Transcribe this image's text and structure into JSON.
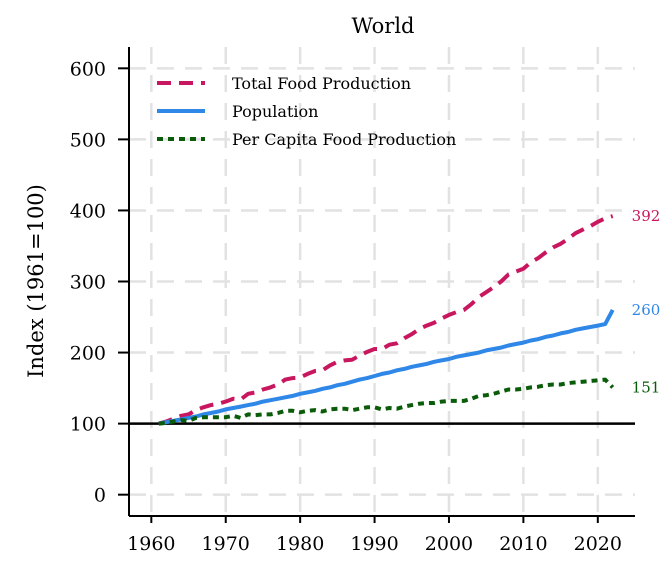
{
  "chart_data": {
    "type": "line",
    "title": "World",
    "xlabel": "",
    "ylabel": "Index (1961=100)",
    "xlim": [
      1957,
      2025
    ],
    "ylim": [
      -30,
      630
    ],
    "x_ticks": [
      1960,
      1970,
      1980,
      1990,
      2000,
      2010,
      2020
    ],
    "y_ticks": [
      0,
      100,
      200,
      300,
      400,
      500,
      600
    ],
    "x_tick_labels": [
      "1960",
      "1970",
      "1980",
      "1990",
      "2000",
      "2010",
      "2020"
    ],
    "y_tick_labels": [
      "0",
      "100",
      "200",
      "300",
      "400",
      "500",
      "600"
    ],
    "grid": true,
    "reference_line": 100,
    "legend_position": "top-left",
    "x": [
      1961,
      1962,
      1963,
      1964,
      1965,
      1966,
      1967,
      1968,
      1969,
      1970,
      1971,
      1972,
      1973,
      1974,
      1975,
      1976,
      1977,
      1978,
      1979,
      1980,
      1981,
      1982,
      1983,
      1984,
      1985,
      1986,
      1987,
      1988,
      1989,
      1990,
      1991,
      1992,
      1993,
      1994,
      1995,
      1996,
      1997,
      1998,
      1999,
      2000,
      2001,
      2002,
      2003,
      2004,
      2005,
      2006,
      2007,
      2008,
      2009,
      2010,
      2011,
      2012,
      2013,
      2014,
      2015,
      2016,
      2017,
      2018,
      2019,
      2020,
      2021,
      2022
    ],
    "series": [
      {
        "name": "Total Food Production",
        "color": "#c8175f",
        "dash": "dashed",
        "end_label": "392",
        "values": [
          100,
          103,
          107,
          111,
          113,
          119,
          123,
          126,
          128,
          131,
          135,
          134,
          142,
          144,
          148,
          151,
          155,
          162,
          164,
          165,
          170,
          174,
          175,
          182,
          187,
          189,
          190,
          196,
          201,
          205,
          205,
          211,
          213,
          220,
          226,
          233,
          238,
          242,
          248,
          253,
          257,
          260,
          268,
          278,
          285,
          292,
          300,
          310,
          314,
          318,
          327,
          333,
          341,
          348,
          353,
          360,
          368,
          373,
          378,
          384,
          389,
          392
        ]
      },
      {
        "name": "Population",
        "color": "#2f87e8",
        "dash": "solid",
        "end_label": "260",
        "values": [
          100,
          102,
          104,
          106,
          108,
          110,
          113,
          115,
          117,
          120,
          122,
          124,
          126,
          128,
          131,
          133,
          135,
          137,
          139,
          142,
          144,
          146,
          149,
          151,
          154,
          156,
          159,
          162,
          164,
          167,
          170,
          172,
          175,
          177,
          180,
          182,
          184,
          187,
          189,
          191,
          194,
          196,
          198,
          200,
          203,
          205,
          207,
          210,
          212,
          214,
          217,
          219,
          222,
          224,
          227,
          229,
          232,
          234,
          236,
          238,
          240,
          260
        ]
      },
      {
        "name": "Per Capita Food Production",
        "color": "#0a5c0a",
        "dash": "dotted",
        "end_label": "151",
        "values": [
          100,
          101,
          103,
          105,
          104,
          108,
          109,
          109,
          109,
          109,
          111,
          108,
          113,
          112,
          113,
          113,
          115,
          118,
          118,
          116,
          118,
          119,
          117,
          120,
          121,
          121,
          119,
          121,
          123,
          123,
          120,
          122,
          121,
          124,
          126,
          128,
          129,
          129,
          131,
          132,
          132,
          132,
          135,
          139,
          140,
          142,
          145,
          148,
          148,
          149,
          151,
          152,
          154,
          155,
          155,
          157,
          158,
          159,
          160,
          161,
          162,
          151
        ]
      }
    ]
  }
}
